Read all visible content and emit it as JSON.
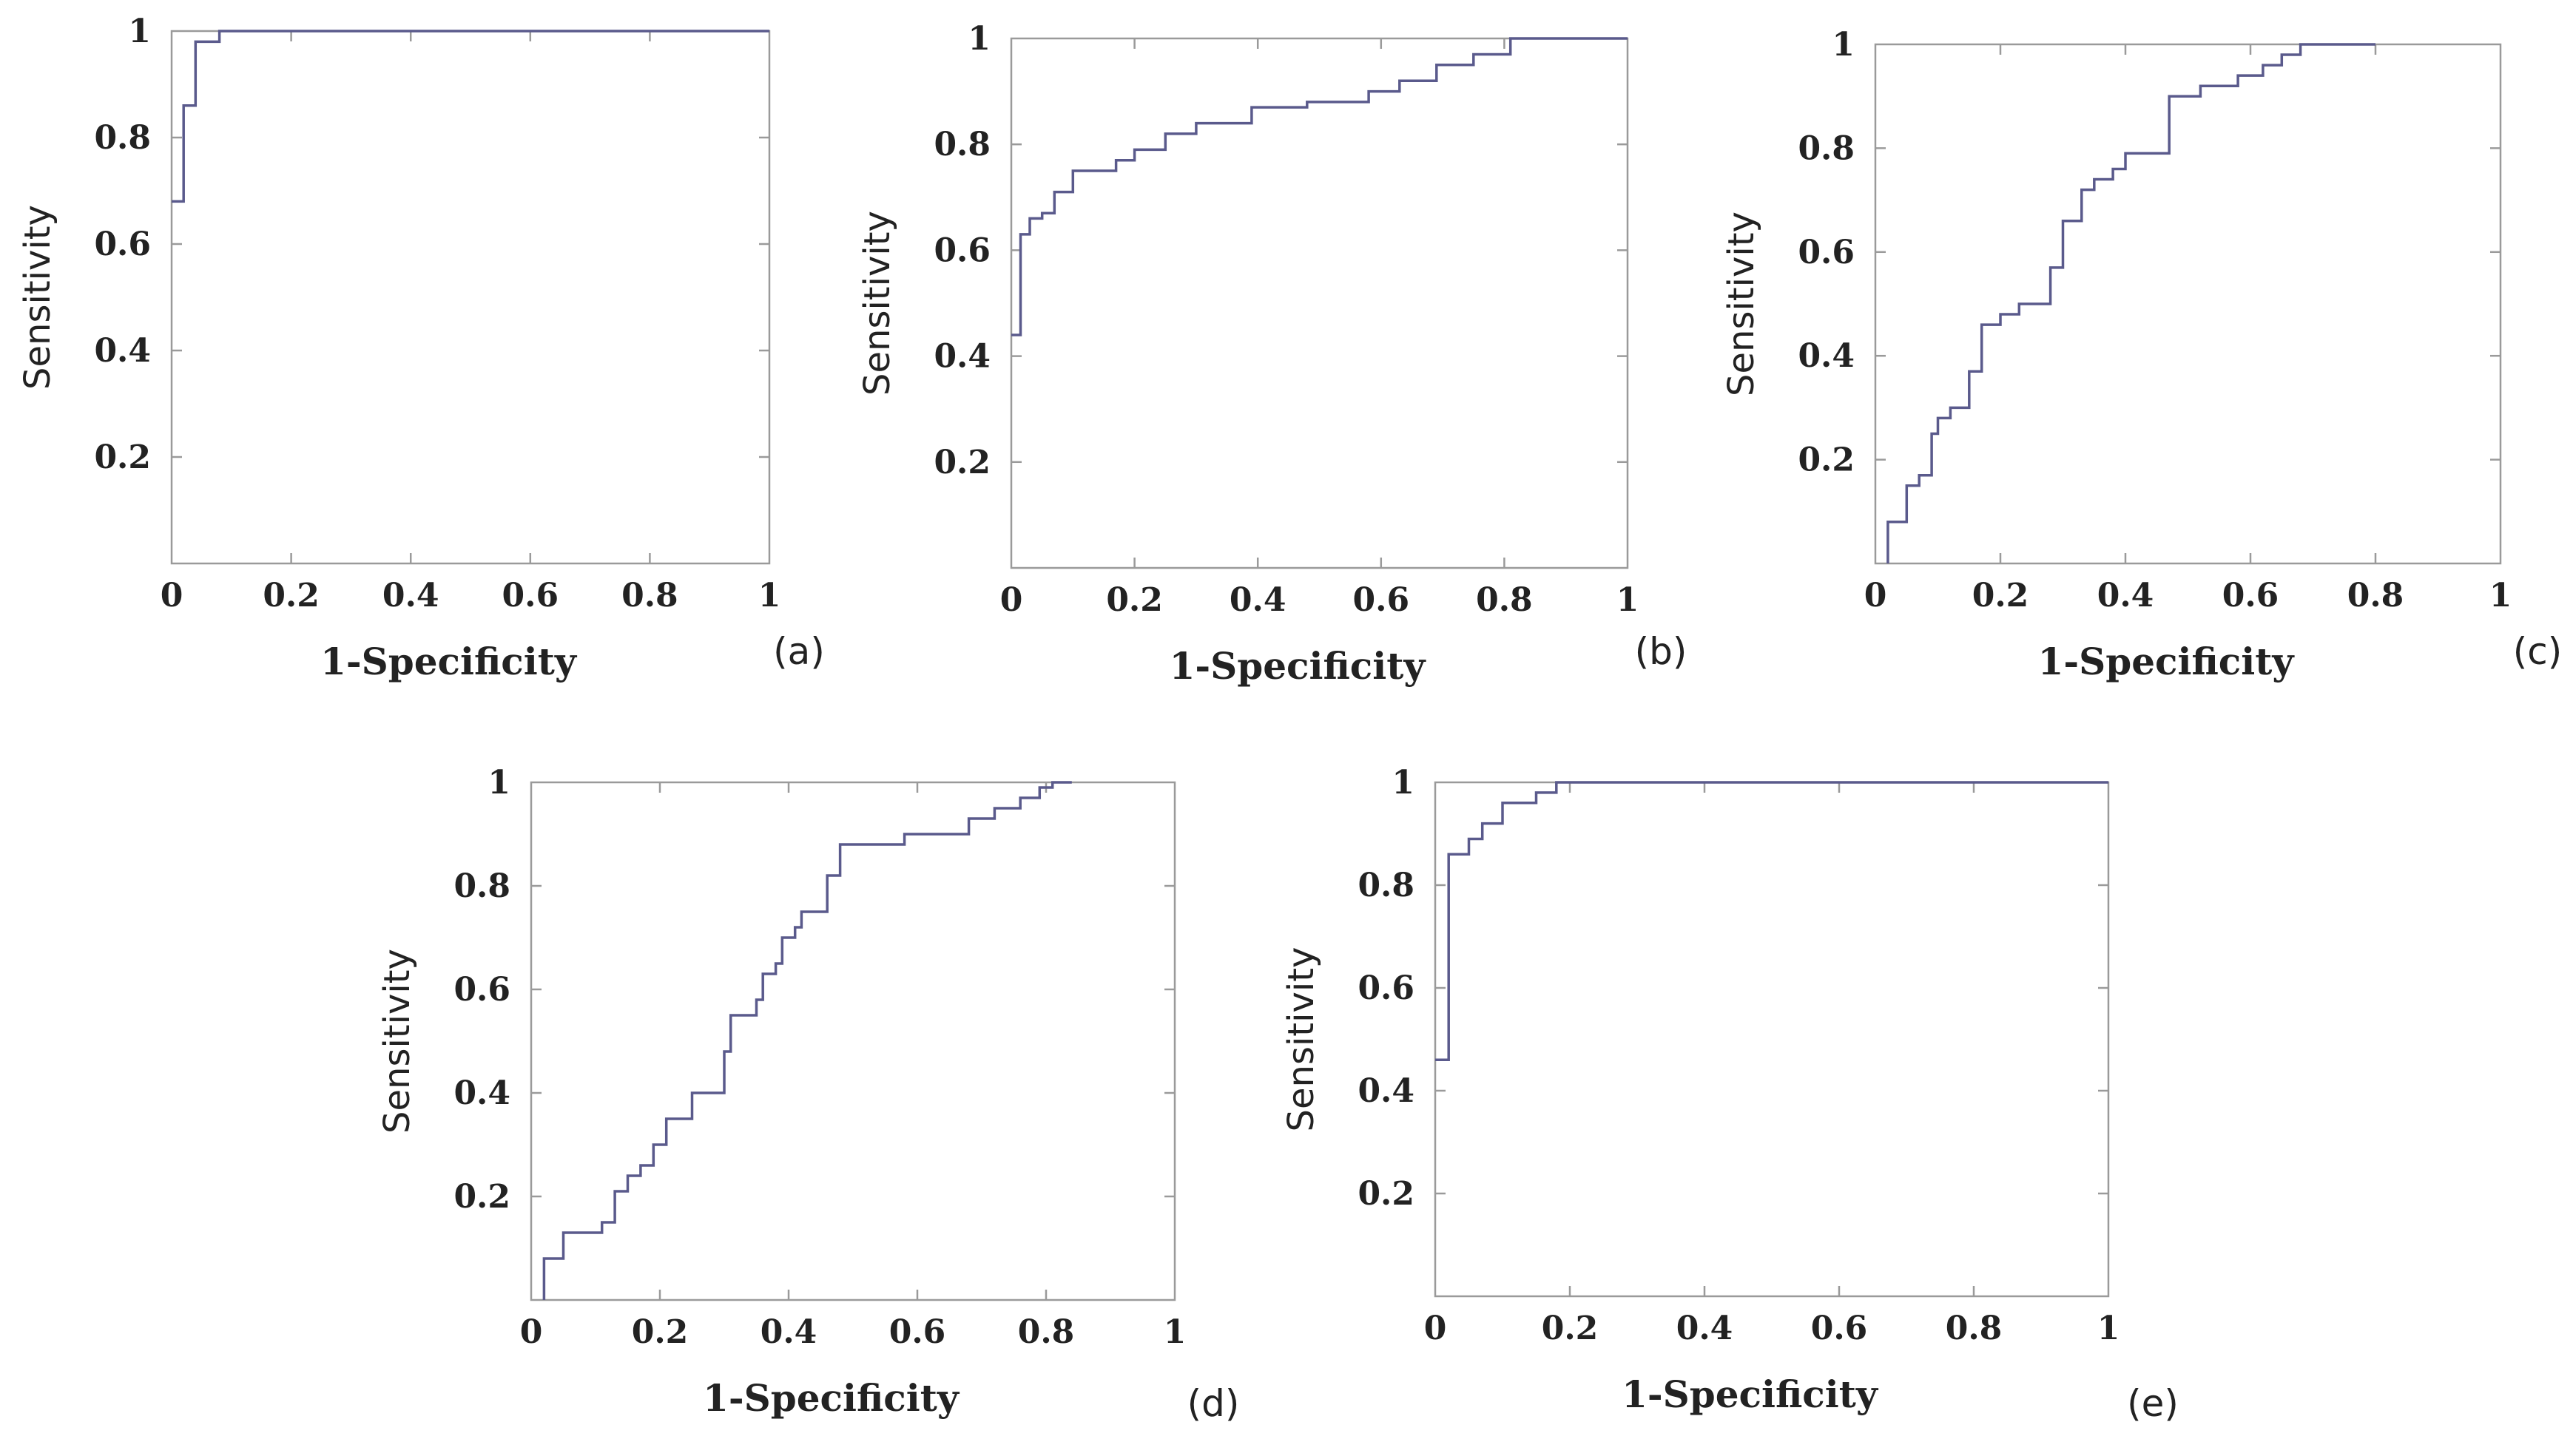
{
  "colors": {
    "curve": "#5a5a8c",
    "frame": "#9a9a9a",
    "text": "#222222"
  },
  "chart_data": [
    {
      "type": "line",
      "step": true,
      "panel_label": "(a)",
      "xlabel": "1-Specificity",
      "ylabel": "Sensitivity",
      "xlim": [
        0,
        1
      ],
      "ylim": [
        0,
        1
      ],
      "xticks": [
        "0",
        "0.2",
        "0.4",
        "0.6",
        "0.8",
        "1"
      ],
      "yticks": [
        "0.2",
        "0.4",
        "0.6",
        "0.8",
        "1"
      ],
      "x": [
        0,
        0.02,
        0.02,
        0.04,
        0.04,
        0.08,
        0.08,
        1
      ],
      "y": [
        0.68,
        0.68,
        0.86,
        0.86,
        0.98,
        0.98,
        1,
        1
      ]
    },
    {
      "type": "line",
      "step": true,
      "panel_label": "(b)",
      "xlabel": "1-Specificity",
      "ylabel": "Sensitivity",
      "xlim": [
        0,
        1
      ],
      "ylim": [
        0,
        1
      ],
      "xticks": [
        "0",
        "0.2",
        "0.4",
        "0.6",
        "0.8",
        "1"
      ],
      "yticks": [
        "0.2",
        "0.4",
        "0.6",
        "0.8",
        "1"
      ],
      "x": [
        0,
        0.015,
        0.015,
        0.03,
        0.03,
        0.05,
        0.05,
        0.07,
        0.07,
        0.1,
        0.1,
        0.17,
        0.17,
        0.2,
        0.2,
        0.25,
        0.25,
        0.3,
        0.3,
        0.39,
        0.39,
        0.48,
        0.48,
        0.58,
        0.58,
        0.63,
        0.63,
        0.69,
        0.69,
        0.75,
        0.75,
        0.81,
        0.81,
        1
      ],
      "y": [
        0.44,
        0.44,
        0.63,
        0.63,
        0.66,
        0.66,
        0.67,
        0.67,
        0.71,
        0.71,
        0.75,
        0.75,
        0.77,
        0.77,
        0.79,
        0.79,
        0.82,
        0.82,
        0.84,
        0.84,
        0.87,
        0.87,
        0.88,
        0.88,
        0.9,
        0.9,
        0.92,
        0.92,
        0.95,
        0.95,
        0.97,
        0.97,
        1,
        1
      ]
    },
    {
      "type": "line",
      "step": true,
      "panel_label": "(c)",
      "xlabel": "1-Specificity",
      "ylabel": "Sensitivity",
      "xlim": [
        0,
        1
      ],
      "ylim": [
        0,
        1
      ],
      "xticks": [
        "0",
        "0.2",
        "0.4",
        "0.6",
        "0.8",
        "1"
      ],
      "yticks": [
        "0.2",
        "0.4",
        "0.6",
        "0.8",
        "1"
      ],
      "x": [
        0.02,
        0.02,
        0.05,
        0.05,
        0.07,
        0.07,
        0.09,
        0.09,
        0.1,
        0.1,
        0.12,
        0.12,
        0.15,
        0.15,
        0.17,
        0.17,
        0.2,
        0.2,
        0.23,
        0.23,
        0.28,
        0.28,
        0.3,
        0.3,
        0.33,
        0.33,
        0.35,
        0.35,
        0.38,
        0.38,
        0.4,
        0.4,
        0.47,
        0.47,
        0.52,
        0.52,
        0.58,
        0.58,
        0.62,
        0.62,
        0.65,
        0.65,
        0.68,
        0.68,
        0.8
      ],
      "y": [
        0,
        0.08,
        0.08,
        0.15,
        0.15,
        0.17,
        0.17,
        0.25,
        0.25,
        0.28,
        0.28,
        0.3,
        0.3,
        0.37,
        0.37,
        0.46,
        0.46,
        0.48,
        0.48,
        0.5,
        0.5,
        0.57,
        0.57,
        0.66,
        0.66,
        0.72,
        0.72,
        0.74,
        0.74,
        0.76,
        0.76,
        0.79,
        0.79,
        0.9,
        0.9,
        0.92,
        0.92,
        0.94,
        0.94,
        0.96,
        0.96,
        0.98,
        0.98,
        1,
        1
      ]
    },
    {
      "type": "line",
      "step": true,
      "panel_label": "(d)",
      "xlabel": "1-Specificity",
      "ylabel": "Sensitivity",
      "xlim": [
        0,
        1
      ],
      "ylim": [
        0,
        1
      ],
      "xticks": [
        "0",
        "0.2",
        "0.4",
        "0.6",
        "0.8",
        "1"
      ],
      "yticks": [
        "0.2",
        "0.4",
        "0.6",
        "0.8",
        "1"
      ],
      "x": [
        0.02,
        0.02,
        0.05,
        0.05,
        0.11,
        0.11,
        0.13,
        0.13,
        0.15,
        0.15,
        0.17,
        0.17,
        0.19,
        0.19,
        0.21,
        0.21,
        0.25,
        0.25,
        0.3,
        0.3,
        0.31,
        0.31,
        0.35,
        0.35,
        0.36,
        0.36,
        0.38,
        0.38,
        0.39,
        0.39,
        0.41,
        0.41,
        0.42,
        0.42,
        0.46,
        0.46,
        0.48,
        0.48,
        0.58,
        0.58,
        0.68,
        0.68,
        0.72,
        0.72,
        0.76,
        0.76,
        0.79,
        0.79,
        0.81,
        0.81,
        0.83,
        0.83,
        0.84
      ],
      "y": [
        0,
        0.08,
        0.08,
        0.13,
        0.13,
        0.15,
        0.15,
        0.21,
        0.21,
        0.24,
        0.24,
        0.26,
        0.26,
        0.3,
        0.3,
        0.35,
        0.35,
        0.4,
        0.4,
        0.48,
        0.48,
        0.55,
        0.55,
        0.58,
        0.58,
        0.63,
        0.63,
        0.65,
        0.65,
        0.7,
        0.7,
        0.72,
        0.72,
        0.75,
        0.75,
        0.82,
        0.82,
        0.88,
        0.88,
        0.9,
        0.9,
        0.93,
        0.93,
        0.95,
        0.95,
        0.97,
        0.97,
        0.99,
        0.99,
        1,
        1,
        1,
        1
      ]
    },
    {
      "type": "line",
      "step": true,
      "panel_label": "(e)",
      "xlabel": "1-Specificity",
      "ylabel": "Sensitivity",
      "xlim": [
        0,
        1
      ],
      "ylim": [
        0,
        1
      ],
      "xticks": [
        "0",
        "0.2",
        "0.4",
        "0.6",
        "0.8",
        "1"
      ],
      "yticks": [
        "0.2",
        "0.4",
        "0.6",
        "0.8",
        "1"
      ],
      "x": [
        0,
        0.02,
        0.02,
        0.05,
        0.05,
        0.07,
        0.07,
        0.1,
        0.1,
        0.15,
        0.15,
        0.18,
        0.18,
        1
      ],
      "y": [
        0.46,
        0.46,
        0.86,
        0.86,
        0.89,
        0.89,
        0.92,
        0.92,
        0.96,
        0.96,
        0.98,
        0.98,
        1,
        1
      ]
    }
  ]
}
